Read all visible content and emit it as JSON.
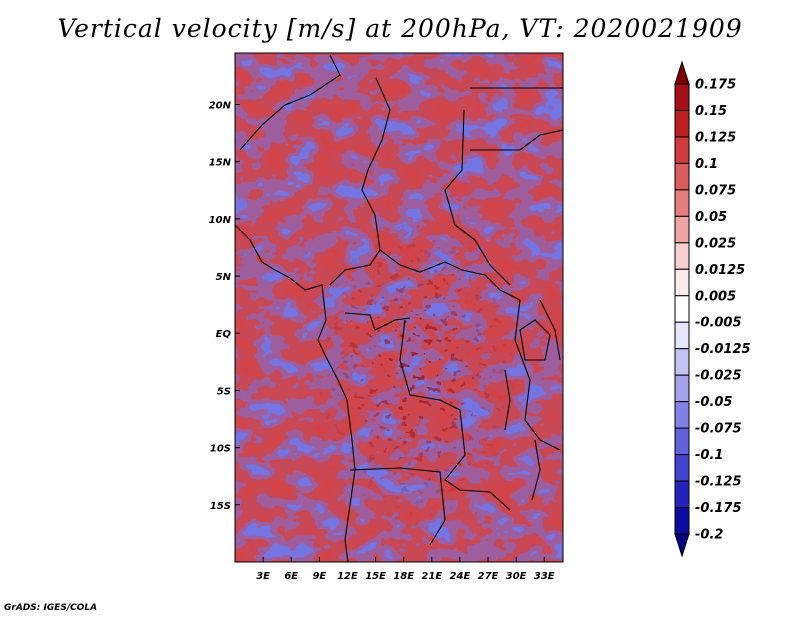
{
  "title": "Vertical velocity [m/s] at 200hPa, VT: 2020021909",
  "credit": "GrADS: IGES/COLA",
  "chart_data": {
    "type": "heatmap",
    "title": "Vertical velocity [m/s] at 200hPa, VT: 2020021909",
    "variable": "Vertical velocity",
    "units": "m/s",
    "level": "200hPa",
    "valid_time": "2020021909",
    "xlim": [
      0,
      35
    ],
    "ylim": [
      -20,
      24.5
    ],
    "x_ticks": [
      3,
      6,
      9,
      12,
      15,
      18,
      21,
      24,
      27,
      30,
      33
    ],
    "x_tick_labels": [
      "3E",
      "6E",
      "9E",
      "12E",
      "15E",
      "18E",
      "21E",
      "24E",
      "27E",
      "30E",
      "33E"
    ],
    "y_ticks": [
      20,
      15,
      10,
      5,
      0,
      -5,
      -10,
      -15
    ],
    "y_tick_labels": [
      "20N",
      "15N",
      "10N",
      "5N",
      "EQ",
      "5S",
      "10S",
      "15S"
    ],
    "colorbar": {
      "labels": [
        "0.175",
        "0.15",
        "0.125",
        "0.1",
        "0.075",
        "0.05",
        "0.025",
        "0.0125",
        "0.005",
        "-0.005",
        "-0.0125",
        "-0.025",
        "-0.05",
        "-0.075",
        "-0.1",
        "-0.125",
        "-0.175",
        "-0.2"
      ],
      "colors": [
        "#7f0000",
        "#a50f15",
        "#bd1e1e",
        "#cf3b3b",
        "#dc5c5c",
        "#e67e7e",
        "#f0a4a4",
        "#f7cfcf",
        "#fdeaea",
        "#ffffff",
        "#e5e5fb",
        "#c4c4f4",
        "#a3a3ee",
        "#8282e6",
        "#6262dd",
        "#4343d0",
        "#2424bc",
        "#0b0ba0",
        "#000080"
      ]
    }
  }
}
